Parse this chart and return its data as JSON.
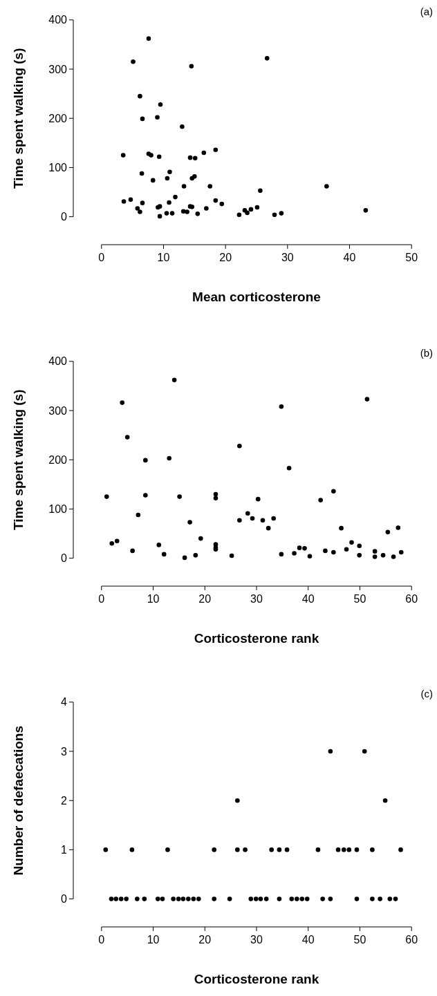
{
  "chart_data": [
    {
      "type": "scatter",
      "title": "(a)",
      "xlabel": "Mean corticosterone",
      "ylabel": "Time spent walking (s)",
      "color": "#000000",
      "marker": "circle",
      "xlim": [
        0,
        50
      ],
      "ylim": [
        0,
        400
      ],
      "xticks": [
        0,
        10,
        20,
        30,
        40,
        50
      ],
      "yticks": [
        0,
        100,
        200,
        300,
        400
      ],
      "x": [
        7.6,
        5.1,
        14.5,
        26.7,
        6.2,
        9.5,
        9.0,
        6.6,
        13.0,
        3.5,
        7.6,
        8.0,
        9.3,
        14.3,
        15.1,
        16.5,
        18.4,
        6.5,
        11.0,
        10.6,
        14.6,
        15.0,
        8.3,
        13.3,
        17.5,
        36.3,
        25.6,
        3.6,
        4.7,
        6.6,
        11.9,
        10.9,
        18.4,
        19.4,
        5.8,
        6.2,
        9.1,
        9.4,
        14.3,
        14.6,
        16.9,
        9.4,
        10.5,
        11.4,
        13.2,
        13.8,
        15.5,
        22.2,
        23.1,
        23.5,
        24.1,
        25.1,
        27.9,
        29.0,
        42.6
      ],
      "values": [
        362,
        315,
        306,
        322,
        245,
        228,
        202,
        199,
        183,
        125,
        128,
        125,
        122,
        120,
        119,
        130,
        136,
        88,
        91,
        78,
        78,
        82,
        74,
        62,
        62,
        62,
        53,
        31,
        35,
        28,
        40,
        29,
        33,
        26,
        17,
        10,
        19,
        21,
        21,
        20,
        17,
        1,
        7,
        7,
        11,
        10,
        6,
        4,
        13,
        8,
        15,
        19,
        4,
        7,
        13
      ]
    },
    {
      "type": "scatter",
      "title": "(b)",
      "xlabel": "Corticosterone rank",
      "ylabel": "Time spent walking (s)",
      "color": "#000000",
      "marker": "circle",
      "xlim": [
        0,
        60
      ],
      "ylim": [
        0,
        400
      ],
      "xticks": [
        0,
        10,
        20,
        30,
        40,
        50,
        60
      ],
      "yticks": [
        0,
        100,
        200,
        300,
        400
      ],
      "x": [
        14.1,
        4.0,
        5.0,
        8.5,
        13.1,
        26.7,
        1.0,
        8.5,
        15.1,
        22.1,
        22.1,
        30.3,
        7.1,
        28.3,
        29.2,
        26.7,
        17.1,
        19.2,
        2.0,
        3.0,
        11.1,
        22.1,
        22.1,
        22.1,
        6.0,
        12.1,
        16.1,
        18.2,
        25.2,
        34.8,
        51.4,
        36.3,
        44.9,
        42.4,
        31.2,
        32.3,
        33.3,
        46.4,
        55.4,
        57.4,
        34.8,
        37.3,
        38.3,
        39.3,
        40.3,
        43.3,
        44.9,
        47.4,
        48.4,
        49.9,
        49.9,
        52.9,
        52.9,
        54.5,
        56.5,
        58.0
      ],
      "values": [
        362,
        316,
        246,
        199,
        203,
        228,
        125,
        128,
        125,
        130,
        122,
        120,
        88,
        91,
        81,
        77,
        73,
        40,
        30,
        35,
        27,
        28,
        21,
        18,
        15,
        8,
        1,
        6,
        5,
        308,
        323,
        183,
        136,
        118,
        77,
        61,
        81,
        61,
        53,
        62,
        8,
        10,
        21,
        20,
        4,
        15,
        12,
        18,
        32,
        25,
        6,
        14,
        3,
        6,
        3,
        12
      ]
    },
    {
      "type": "scatter",
      "title": "(c)",
      "xlabel": "Corticosterone rank",
      "ylabel": "Number of defaecations",
      "color": "#000000",
      "marker": "circle",
      "xlim": [
        0,
        60
      ],
      "ylim": [
        0,
        4
      ],
      "xticks": [
        0,
        10,
        20,
        30,
        40,
        50,
        60
      ],
      "yticks": [
        0,
        1,
        2,
        3,
        4
      ],
      "x": [
        0.8,
        5.9,
        12.8,
        21.8,
        26.3,
        27.8,
        32.9,
        34.4,
        35.9,
        41.9,
        45.8,
        46.9,
        47.9,
        49.4,
        52.4,
        57.9,
        1.9,
        2.8,
        3.8,
        4.8,
        6.9,
        8.3,
        10.9,
        11.8,
        13.9,
        14.9,
        15.8,
        16.8,
        17.8,
        18.8,
        21.8,
        24.8,
        28.9,
        29.9,
        30.8,
        31.9,
        34.4,
        36.8,
        37.8,
        38.8,
        39.8,
        42.8,
        44.3,
        49.4,
        52.4,
        53.9,
        55.8,
        56.9,
        26.3,
        54.9,
        44.3,
        50.9
      ],
      "values": [
        1,
        1,
        1,
        1,
        1,
        1,
        1,
        1,
        1,
        1,
        1,
        1,
        1,
        1,
        1,
        1,
        0,
        0,
        0,
        0,
        0,
        0,
        0,
        0,
        0,
        0,
        0,
        0,
        0,
        0,
        0,
        0,
        0,
        0,
        0,
        0,
        0,
        0,
        0,
        0,
        0,
        0,
        0,
        0,
        0,
        0,
        0,
        0,
        2,
        2,
        3,
        3
      ]
    }
  ]
}
